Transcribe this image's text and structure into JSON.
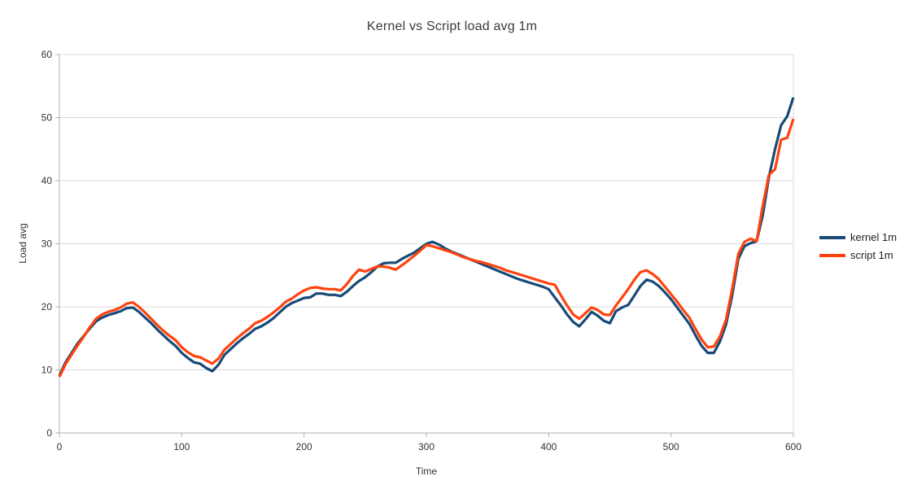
{
  "title": "Kernel vs Script load avg 1m",
  "colors": {
    "kernel": "#174a77",
    "script": "#ff420e",
    "grid": "#d9d9d9",
    "axis": "#b0b0b0",
    "tick_text": "#333333",
    "background": "#ffffff"
  },
  "chart_data": {
    "type": "line",
    "title": "Kernel vs Script load avg 1m",
    "xlabel": "Time",
    "ylabel": "Load avg",
    "xlim": [
      0,
      600
    ],
    "ylim": [
      0,
      60
    ],
    "xticks": [
      0,
      100,
      200,
      300,
      400,
      500,
      600
    ],
    "yticks": [
      0,
      10,
      20,
      30,
      40,
      50,
      60
    ],
    "x_step": 5,
    "grid": "horizontal",
    "legend_position": "right",
    "series": [
      {
        "name": "kernel 1m",
        "color": "#174a77",
        "values": [
          9.1,
          11.2,
          12.7,
          14.2,
          15.4,
          16.6,
          17.7,
          18.3,
          18.7,
          19.0,
          19.3,
          19.8,
          19.9,
          19.2,
          18.3,
          17.4,
          16.4,
          15.5,
          14.6,
          13.8,
          12.7,
          11.9,
          11.2,
          11.0,
          10.3,
          9.8,
          10.8,
          12.4,
          13.3,
          14.2,
          15.0,
          15.7,
          16.5,
          16.9,
          17.5,
          18.2,
          19.1,
          20.0,
          20.6,
          21.0,
          21.4,
          21.5,
          22.1,
          22.1,
          21.9,
          21.9,
          21.7,
          22.4,
          23.3,
          24.1,
          24.7,
          25.5,
          26.4,
          26.9,
          27.0,
          27.0,
          27.6,
          28.1,
          28.6,
          29.3,
          30.0,
          30.3,
          29.9,
          29.3,
          28.8,
          28.4,
          28.0,
          27.6,
          27.2,
          26.8,
          26.4,
          26.0,
          25.6,
          25.2,
          24.8,
          24.4,
          24.1,
          23.8,
          23.5,
          23.2,
          22.8,
          21.5,
          20.2,
          18.8,
          17.6,
          16.9,
          18.0,
          19.2,
          18.6,
          17.8,
          17.4,
          19.3,
          19.9,
          20.3,
          21.8,
          23.3,
          24.3,
          24.0,
          23.3,
          22.3,
          21.2,
          19.9,
          18.6,
          17.3,
          15.5,
          13.8,
          12.7,
          12.7,
          14.5,
          17.2,
          21.8,
          27.6,
          29.6,
          30.1,
          30.4,
          34.5,
          40.5,
          45.0,
          48.8,
          50.2,
          53.2
        ]
      },
      {
        "name": "script 1m",
        "color": "#ff420e",
        "values": [
          8.9,
          10.9,
          12.4,
          13.9,
          15.3,
          16.8,
          18.1,
          18.8,
          19.2,
          19.5,
          19.9,
          20.5,
          20.7,
          20.0,
          19.1,
          18.1,
          17.1,
          16.2,
          15.4,
          14.7,
          13.6,
          12.8,
          12.2,
          12.0,
          11.5,
          11.0,
          11.8,
          13.2,
          14.1,
          15.0,
          15.8,
          16.5,
          17.4,
          17.8,
          18.4,
          19.1,
          19.9,
          20.8,
          21.3,
          22.0,
          22.6,
          23.0,
          23.1,
          22.9,
          22.8,
          22.8,
          22.6,
          23.6,
          24.9,
          25.9,
          25.6,
          26.0,
          26.4,
          26.4,
          26.2,
          25.9,
          26.6,
          27.3,
          28.1,
          28.9,
          29.8,
          29.6,
          29.3,
          29.0,
          28.7,
          28.3,
          27.9,
          27.6,
          27.3,
          27.1,
          26.8,
          26.5,
          26.2,
          25.8,
          25.5,
          25.2,
          24.9,
          24.6,
          24.3,
          24.0,
          23.7,
          23.5,
          21.8,
          20.2,
          18.8,
          18.1,
          19.0,
          19.9,
          19.5,
          18.8,
          18.7,
          20.2,
          21.5,
          22.8,
          24.3,
          25.5,
          25.8,
          25.2,
          24.4,
          23.2,
          22.0,
          20.8,
          19.5,
          18.3,
          16.5,
          14.8,
          13.6,
          13.7,
          15.3,
          18.0,
          22.8,
          28.4,
          30.3,
          30.8,
          30.4,
          36.0,
          40.9,
          41.8,
          46.5,
          46.8,
          49.8
        ]
      }
    ]
  },
  "legend": {
    "items": [
      {
        "label": "kernel 1m"
      },
      {
        "label": "script 1m"
      }
    ]
  }
}
